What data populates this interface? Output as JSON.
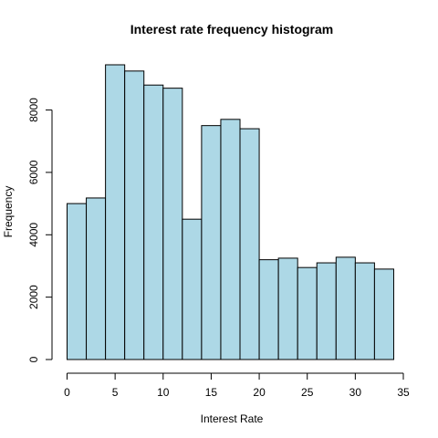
{
  "chart_data": {
    "type": "bar",
    "title": "Interest rate frequency histogram",
    "xlabel": "Interest Rate",
    "ylabel": "Frequency",
    "bin_edges": [
      0,
      2,
      4,
      6,
      8,
      10,
      12,
      14,
      16,
      18,
      20,
      22,
      24,
      26,
      28,
      30,
      32,
      34
    ],
    "values": [
      5000,
      5180,
      9450,
      9250,
      8800,
      8700,
      4500,
      7500,
      7700,
      7400,
      3200,
      3250,
      2950,
      3100,
      3280,
      3100,
      2900
    ],
    "xlim": [
      0,
      35
    ],
    "ylim": [
      0,
      9450
    ],
    "x_ticks": [
      0,
      5,
      10,
      15,
      20,
      25,
      30,
      35
    ],
    "y_ticks": [
      0,
      2000,
      4000,
      6000,
      8000
    ],
    "bar_color": "#add8e6",
    "grid": false,
    "legend": "none"
  }
}
